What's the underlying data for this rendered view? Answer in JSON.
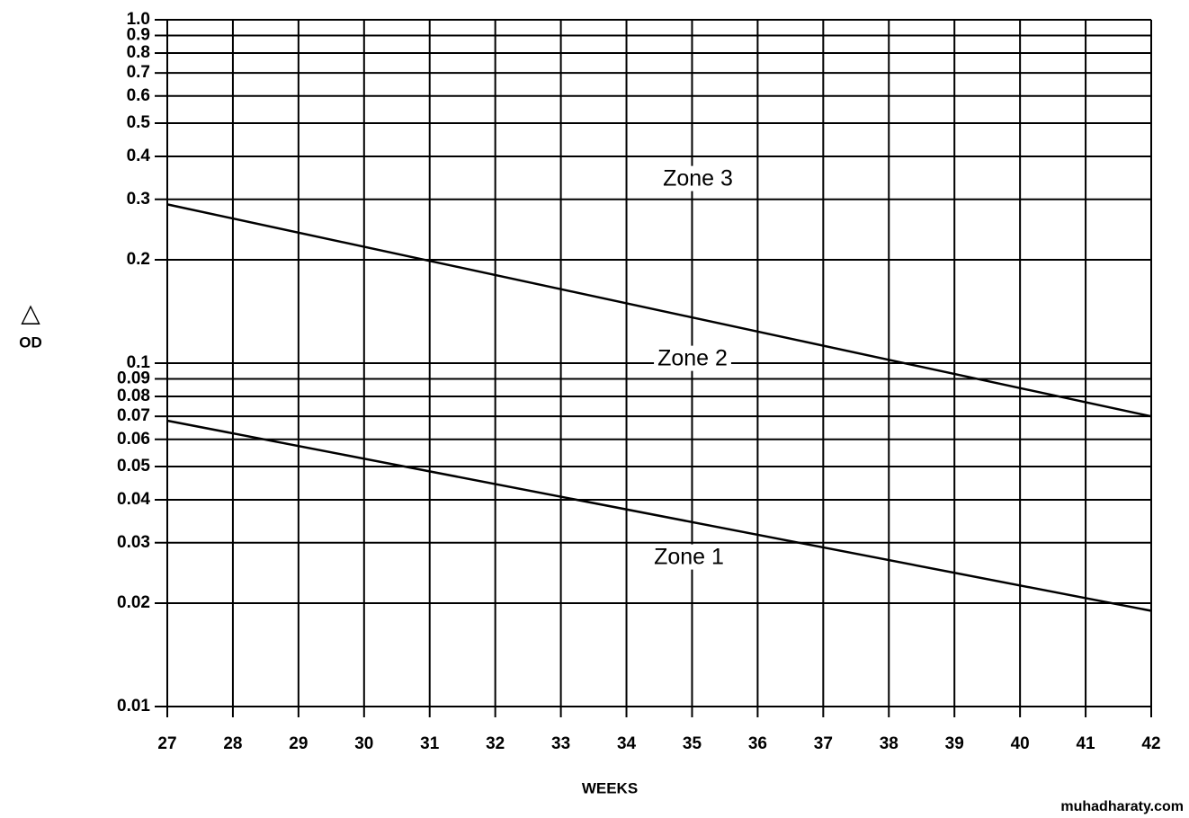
{
  "chart_data": {
    "type": "line",
    "ylabel_symbol": "△",
    "ylabel": "OD",
    "xlabel": "WEEKS",
    "x": [
      27,
      42
    ],
    "series": [
      {
        "name": "Zone 2/3 boundary",
        "color": "#000000",
        "values": [
          0.29,
          0.07
        ]
      },
      {
        "name": "Zone 1/2 boundary",
        "color": "#000000",
        "values": [
          0.068,
          0.019
        ]
      }
    ],
    "annotations": [
      "Zone 3",
      "Zone 2",
      "Zone 1"
    ],
    "watermark": "muhadharaty.com",
    "log_y": true,
    "grid": true,
    "xlim": [
      27,
      42
    ],
    "xticks": [
      27,
      28,
      29,
      30,
      31,
      32,
      33,
      34,
      35,
      36,
      37,
      38,
      39,
      40,
      41,
      42
    ],
    "ylim": [
      0.01,
      1
    ],
    "yticks": [
      0.01,
      0.02,
      0.03,
      0.04,
      0.05,
      0.06,
      0.07,
      0.08,
      0.09,
      0.1,
      0.2,
      0.3,
      0.4,
      0.5,
      0.6,
      0.7,
      0.8,
      0.9,
      {
        "value": 1,
        "label": "1.0"
      }
    ]
  }
}
